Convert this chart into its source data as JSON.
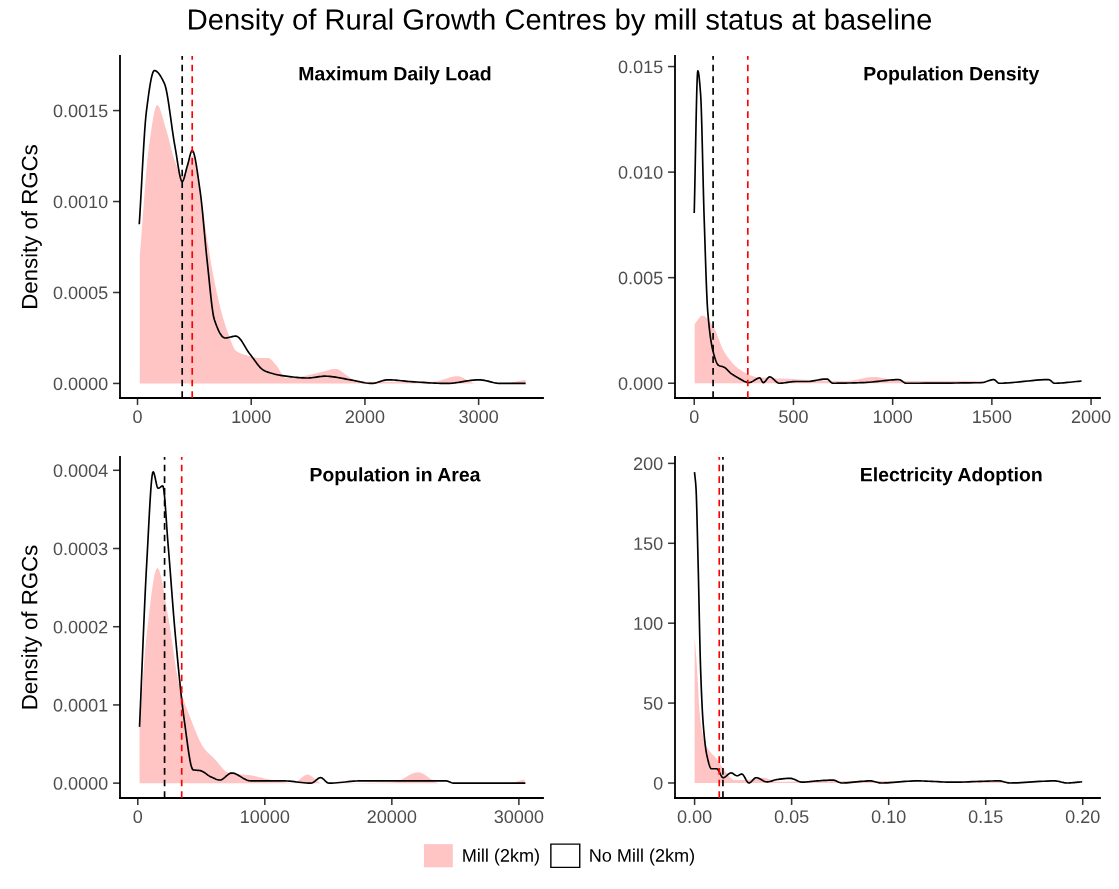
{
  "chart_data": [
    {
      "type": "area",
      "title": "Density of Rural Growth Centres by mill status at baseline",
      "subtitle": "Maximum Daily Load",
      "ylabel": "Density of RGCs",
      "legend": "bottom",
      "grid": false,
      "xlim": [
        -154,
        3566
      ],
      "xticks": [
        0,
        1000,
        2000,
        3000
      ],
      "ylim": [
        -8e-05,
        0.0018
      ],
      "yticks": [
        {
          "value": 0,
          "label": "0.0000"
        },
        {
          "value": 0.0005,
          "label": "0.0005"
        },
        {
          "value": 0.001,
          "label": "0.0010"
        },
        {
          "value": 0.0015,
          "label": "0.0015"
        }
      ],
      "series": [
        {
          "name": "Mill (2km)",
          "color": "#ffc4c4",
          "x": [
            20,
            100,
            173,
            250,
            330,
            393,
            440,
            481,
            540,
            613,
            680,
            739,
            800,
            865,
            930,
            990,
            1070,
            1148,
            1220,
            1305,
            1450,
            1600,
            1745,
            1850,
            1934,
            2248,
            2600,
            2814,
            2972,
            3200,
            3412
          ],
          "values": [
            0.0007,
            0.0013,
            0.00153,
            0.0014,
            0.00122,
            0.00114,
            0.0012,
            0.00125,
            0.0011,
            0.00079,
            0.00055,
            0.00039,
            0.00027,
            0.00018,
            0.00016,
            0.00015,
            0.00014,
            0.00014,
            0.0001,
            3e-05,
            4e-05,
            6e-05,
            8e-05,
            4e-05,
            1e-05,
            1e-05,
            1e-05,
            4e-05,
            0.0,
            0.0,
            2e-05
          ]
        },
        {
          "name": "No Mill (2km)",
          "type": "line",
          "color": "#000000",
          "x": [
            16,
            79,
            148,
            236,
            330,
            393,
            440,
            481,
            550,
            613,
            676,
            770,
            865,
            990,
            1116,
            1305,
            1494,
            1651,
            1871,
            2060,
            2201,
            2406,
            2720,
            3003,
            3192,
            3406
          ],
          "values": [
            0.00088,
            0.0015,
            0.00172,
            0.00165,
            0.0013,
            0.00111,
            0.0012,
            0.00128,
            0.00106,
            0.00067,
            0.00035,
            0.00025,
            0.00026,
            0.00016,
            7e-05,
            4e-05,
            3e-05,
            4e-05,
            2e-05,
            0.0,
            2e-05,
            1e-05,
            0.0,
            2e-05,
            0.0,
            0.0
          ]
        }
      ],
      "ref_lines": [
        {
          "axis": "x",
          "value": 393,
          "color": "#000000",
          "line_style": "dashed"
        },
        {
          "axis": "x",
          "value": 481,
          "color": "#ff0000",
          "line_style": "dashed"
        }
      ]
    },
    {
      "type": "area",
      "subtitle": "Population Density",
      "grid": false,
      "xlim": [
        -97,
        2045
      ],
      "xticks": [
        0,
        500,
        1000,
        1500,
        2000
      ],
      "ylim": [
        -0.0007,
        0.0155
      ],
      "yticks": [
        {
          "value": 0,
          "label": "0.000"
        },
        {
          "value": 0.005,
          "label": "0.005"
        },
        {
          "value": 0.01,
          "label": "0.010"
        },
        {
          "value": 0.015,
          "label": "0.015"
        }
      ],
      "series": [
        {
          "color": "#ffc4c4",
          "x": [
            2,
            41,
            95,
            150,
            222,
            312,
            492,
            762,
            906,
            1032,
            1303,
            1447,
            1465
          ],
          "values": [
            0.0028,
            0.0032,
            0.0027,
            0.0015,
            0.0007,
            0.0003,
            0.0002,
            0.0001,
            0.0003,
            0.0001,
            0.0001,
            0.0001,
            0.0
          ]
        },
        {
          "type": "line",
          "color": "#000000",
          "x": [
            0,
            18,
            32,
            50,
            68,
            95,
            122,
            150,
            186,
            222,
            276,
            330,
            348,
            380,
            429,
            510,
            564,
            668,
            699,
            852,
            1032,
            1068,
            1447,
            1510,
            1537,
            1786,
            1816,
            1948
          ],
          "values": [
            0.0081,
            0.0148,
            0.0137,
            0.0078,
            0.0034,
            0.0015,
            0.00085,
            0.00076,
            0.00046,
            0.00025,
            3e-05,
            0.00025,
            3e-05,
            0.0003,
            0.0,
            8e-05,
            8e-05,
            0.0002,
            0.0,
            3e-05,
            0.00017,
            0.0,
            3e-05,
            0.00017,
            0.0,
            0.00017,
            0.0,
            0.0001
          ]
        }
      ],
      "ref_lines": [
        {
          "axis": "x",
          "value": 95,
          "color": "#000000",
          "line_style": "dashed"
        },
        {
          "axis": "x",
          "value": 270,
          "color": "#ff0000",
          "line_style": "dashed"
        }
      ]
    },
    {
      "type": "area",
      "subtitle": "Population in Area",
      "ylabel": "Density of RGCs",
      "grid": false,
      "xlim": [
        -1400,
        31900
      ],
      "xticks": [
        0,
        10000,
        20000,
        30000
      ],
      "ylim": [
        -1.9e-05,
        0.000417
      ],
      "yticks": [
        {
          "value": 0,
          "label": "0.0000"
        },
        {
          "value": 0.0001,
          "label": "0.0001"
        },
        {
          "value": 0.0002,
          "label": "0.0002"
        },
        {
          "value": 0.0003,
          "label": "0.0003"
        },
        {
          "value": 0.0004,
          "label": "0.0004"
        }
      ],
      "series": [
        {
          "color": "#ffc4c4",
          "x": [
            140,
            700,
            1546,
            2390,
            3233,
            4077,
            5201,
            6045,
            7170,
            8856,
            10543,
            12230,
            13354,
            14479,
            20101,
            22069,
            23755,
            29097,
            30447
          ],
          "values": [
            7.2e-05,
            0.00019,
            0.000275,
            0.000213,
            0.000127,
            8.6e-05,
            4.5e-05,
            3.1e-05,
            1.3e-05,
            1e-05,
            4e-06,
            0.0,
            1.1e-05,
            0.0,
            1e-06,
            1.4e-05,
            0.0,
            0.0,
            4.6e-06
          ]
        },
        {
          "type": "line",
          "color": "#000000",
          "x": [
            140,
            700,
            1209,
            1602,
            1968,
            2390,
            2952,
            3655,
            4358,
            4920,
            5764,
            6466,
            7394,
            8856,
            11386,
            13635,
            14394,
            15041,
            17627,
            21226,
            24234,
            24881,
            30447
          ],
          "values": [
            7.3e-05,
            0.00028,
            0.000398,
            0.000377,
            0.00038,
            0.000304,
            0.00019,
            8.1e-05,
            1.7e-05,
            1.6e-05,
            8e-06,
            4e-06,
            1.3e-05,
            3e-06,
            3e-06,
            0.0,
            7e-06,
            0.0,
            3e-06,
            3e-06,
            3e-06,
            0.0,
            0.0
          ]
        }
      ],
      "ref_lines": [
        {
          "axis": "x",
          "value": 2109,
          "color": "#000000",
          "line_style": "dashed"
        },
        {
          "axis": "x",
          "value": 3458,
          "color": "#ff0000",
          "line_style": "dashed"
        }
      ]
    },
    {
      "type": "area",
      "subtitle": "Electricity Adoption",
      "grid": false,
      "xlim": [
        -0.0101,
        0.2089
      ],
      "xticks": [
        {
          "value": 0,
          "label": "0.00"
        },
        {
          "value": 0.05,
          "label": "0.05"
        },
        {
          "value": 0.1,
          "label": "0.10"
        },
        {
          "value": 0.15,
          "label": "0.15"
        },
        {
          "value": 0.2,
          "label": "0.20"
        }
      ],
      "ylim": [
        -9.4,
        204
      ],
      "yticks": [
        0,
        50,
        100,
        150,
        200
      ],
      "series": [
        {
          "color": "#ffc4c4",
          "x": [
            0,
            0.0013,
            0.0026,
            0.005,
            0.0077,
            0.0114,
            0.0151,
            0.0206,
            0.0298,
            0.0354,
            0.0427,
            0.063,
            0.0999,
            0.1054,
            0.1625,
            0.1699
          ],
          "values": [
            92,
            71,
            44,
            26,
            20,
            15,
            8.5,
            1.8,
            2.2,
            3.3,
            0.7,
            1.3,
            1.3,
            0,
            0.7,
            0
          ]
        },
        {
          "type": "line",
          "color": "#000000",
          "x": [
            0,
            0.0007,
            0.0018,
            0.0031,
            0.0044,
            0.0063,
            0.0087,
            0.0114,
            0.0147,
            0.0188,
            0.0219,
            0.0243,
            0.028,
            0.0317,
            0.0372,
            0.0427,
            0.0492,
            0.0556,
            0.063,
            0.0713,
            0.0759,
            0.0906,
            0.0962,
            0.1146,
            0.133,
            0.157,
            0.1625,
            0.1855,
            0.192,
            0.1993
          ],
          "values": [
            194,
            185,
            138,
            71,
            37.5,
            17.4,
            8.9,
            8.9,
            3.3,
            6.3,
            4.5,
            5.6,
            0,
            3.3,
            0.7,
            2.2,
            2.9,
            0.5,
            1.3,
            1.8,
            0,
            1.3,
            0,
            1.3,
            0.5,
            1.3,
            0,
            1.3,
            0,
            0.7
          ]
        }
      ],
      "ref_lines": [
        {
          "axis": "x",
          "value": 0.0127,
          "color": "#ff0000",
          "line_style": "dashed"
        },
        {
          "axis": "x",
          "value": 0.0146,
          "color": "#000000",
          "line_style": "dashed"
        }
      ]
    }
  ]
}
